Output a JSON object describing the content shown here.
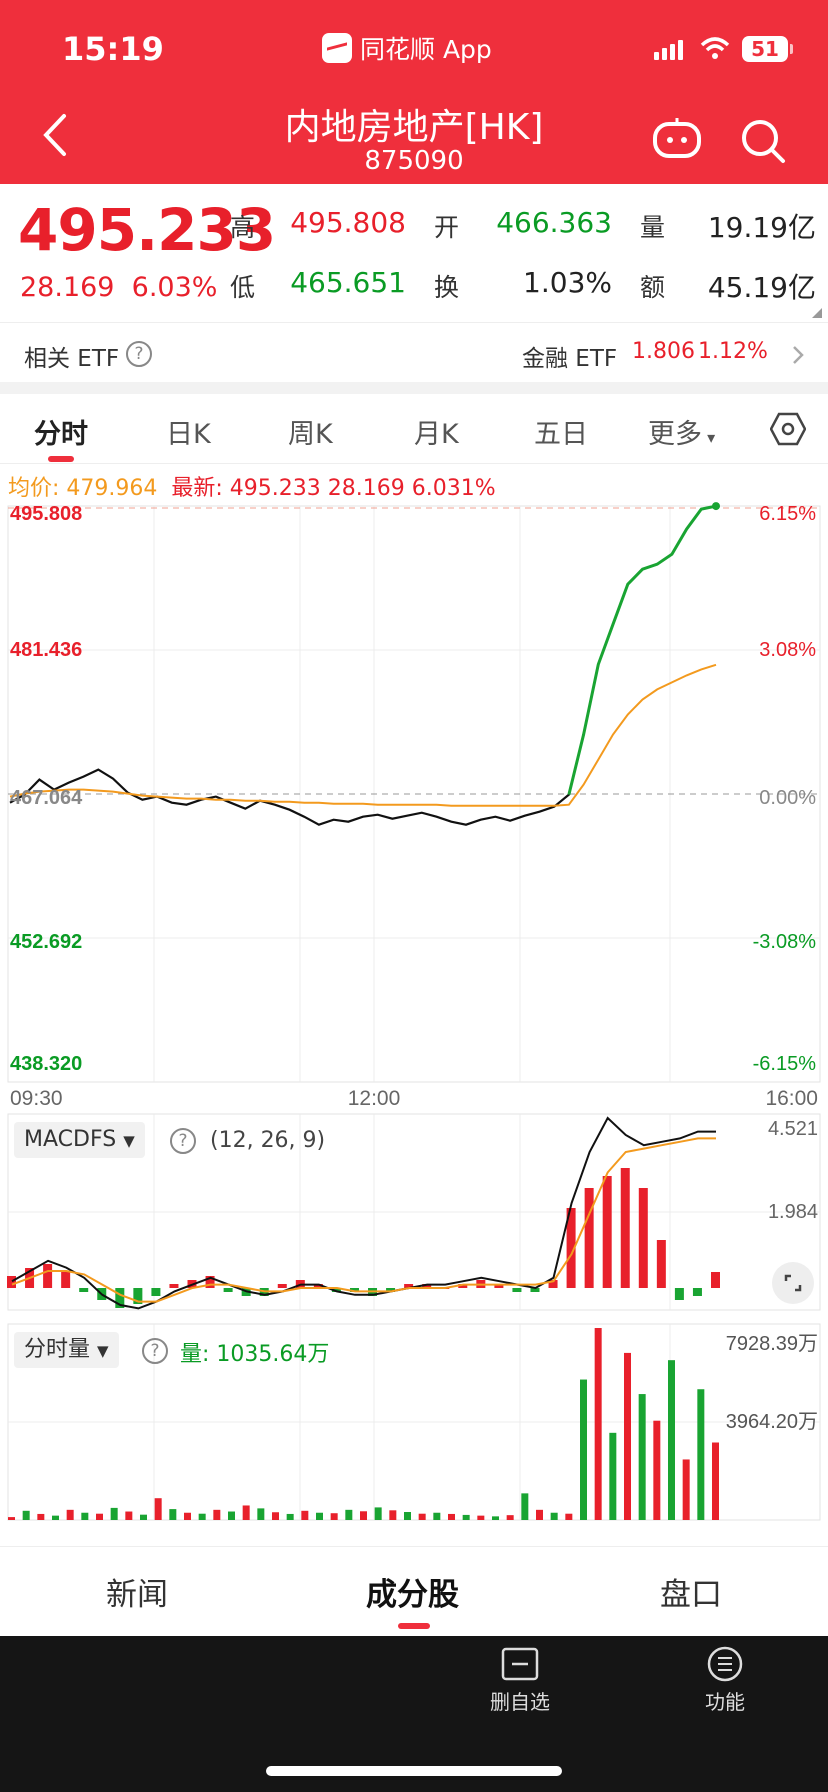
{
  "status": {
    "time": "15:19",
    "app_name": "同花顺 App",
    "battery": "51"
  },
  "header": {
    "title": "内地房地产[HK]",
    "code": "875090"
  },
  "quote": {
    "price": "495.233",
    "change": "28.169",
    "change_pct": "6.03%",
    "high_label": "高",
    "high": "495.808",
    "open_label": "开",
    "open": "466.363",
    "vol_label": "量",
    "volume": "19.19亿",
    "low_label": "低",
    "low": "465.651",
    "turnover_label": "换",
    "turnover": "1.03%",
    "amount_label": "额",
    "amount": "45.19亿"
  },
  "etf": {
    "label": "相关 ETF",
    "fund_name": "金融 ETF",
    "fund_price": "1.806",
    "fund_pct": "1.12%"
  },
  "tabs": [
    "分时",
    "日K",
    "周K",
    "月K",
    "五日",
    "更多"
  ],
  "avg": {
    "avg_label": "均价: 479.964",
    "latest_label": "最新: 495.233  28.169  6.031%"
  },
  "colors": {
    "red": "#e8202b",
    "green": "#0a9b24",
    "avg_line": "#f39a1e",
    "header": "#ef2f3c"
  },
  "chart_data": {
    "type": "line",
    "x_ticks": [
      "09:30",
      "12:00",
      "16:00"
    ],
    "y_left_ticks": [
      "495.808",
      "481.436",
      "467.064",
      "452.692",
      "438.320"
    ],
    "y_right_ticks": [
      "6.15%",
      "3.08%",
      "0.00%",
      "-3.08%",
      "-6.15%"
    ],
    "ylim": [
      438.32,
      495.808
    ],
    "prev_close": 467.064,
    "price_series": [
      466.2,
      467.0,
      468.5,
      467.5,
      468.2,
      468.8,
      469.5,
      468.6,
      467.2,
      466.5,
      466.8,
      466.2,
      466.0,
      466.5,
      466.8,
      466.2,
      465.6,
      466.4,
      466.0,
      465.5,
      464.8,
      464.0,
      464.5,
      464.3,
      464.8,
      465.0,
      464.6,
      464.9,
      465.2,
      464.8,
      464.3,
      464.0,
      464.5,
      464.8,
      464.4,
      464.9,
      465.3,
      465.8,
      467.0,
      473.0,
      480.0,
      484.0,
      488.0,
      489.5,
      490.0,
      491.0,
      493.5,
      495.5,
      495.8
    ],
    "avg_series": [
      466.8,
      467.1,
      467.3,
      467.4,
      467.5,
      467.5,
      467.4,
      467.3,
      467.1,
      466.9,
      466.8,
      466.7,
      466.6,
      466.6,
      466.5,
      466.5,
      466.4,
      466.4,
      466.3,
      466.3,
      466.2,
      466.2,
      466.1,
      466.1,
      466.1,
      466.0,
      466.0,
      466.0,
      466.0,
      466.0,
      465.9,
      465.9,
      465.9,
      465.9,
      465.9,
      465.9,
      465.9,
      465.9,
      466.0,
      468.0,
      470.5,
      473.0,
      475.0,
      476.5,
      477.5,
      478.2,
      478.9,
      479.5,
      479.96
    ],
    "macd": {
      "label": "MACDFS",
      "params": "(12, 26, 9)",
      "ticks": [
        "4.521",
        "1.984"
      ],
      "hist": [
        0.3,
        0.5,
        0.6,
        0.4,
        -0.1,
        -0.3,
        -0.5,
        -0.4,
        -0.2,
        0.1,
        0.2,
        0.3,
        -0.1,
        -0.2,
        -0.2,
        0.1,
        0.2,
        0.1,
        -0.1,
        -0.1,
        -0.2,
        -0.1,
        0.1,
        0.1,
        0.0,
        0.1,
        0.2,
        0.1,
        -0.1,
        -0.1,
        0.2,
        2.0,
        2.5,
        2.8,
        3.0,
        2.5,
        1.2,
        -0.3,
        -0.2,
        0.4
      ],
      "dif": [
        0.2,
        0.5,
        0.8,
        0.6,
        0.3,
        -0.2,
        -0.5,
        -0.6,
        -0.4,
        -0.1,
        0.1,
        0.3,
        0.1,
        -0.1,
        -0.2,
        -0.1,
        0.1,
        0.1,
        -0.1,
        -0.2,
        -0.2,
        -0.1,
        0.0,
        0.1,
        0.1,
        0.2,
        0.3,
        0.2,
        0.1,
        0.0,
        0.3,
        2.5,
        4.0,
        5.0,
        4.5,
        4.2,
        4.3,
        4.4,
        4.6,
        4.6
      ],
      "dea": [
        0.1,
        0.3,
        0.5,
        0.5,
        0.4,
        0.1,
        -0.2,
        -0.4,
        -0.4,
        -0.2,
        0.0,
        0.1,
        0.1,
        0.0,
        -0.1,
        -0.1,
        0.0,
        0.0,
        0.0,
        -0.1,
        -0.1,
        -0.1,
        0.0,
        0.0,
        0.0,
        0.1,
        0.1,
        0.1,
        0.1,
        0.1,
        0.2,
        1.0,
        2.2,
        3.4,
        4.0,
        4.1,
        4.2,
        4.3,
        4.4,
        4.4
      ]
    },
    "volume": {
      "label": "分时量",
      "current_label": "量:",
      "current": "1035.64万",
      "ticks": [
        "7928.39万",
        "3964.20万"
      ],
      "max": 7928.39,
      "bars": [
        120,
        380,
        250,
        180,
        420,
        300,
        260,
        500,
        350,
        220,
        900,
        450,
        300,
        260,
        420,
        350,
        600,
        480,
        320,
        250,
        380,
        300,
        280,
        420,
        360,
        520,
        400,
        330,
        260,
        300,
        250,
        210,
        180,
        150,
        200,
        1100,
        420,
        300,
        260,
        5800,
        7928,
        3600,
        6900,
        5200,
        4100,
        6600,
        2500,
        5400,
        3200
      ]
    }
  },
  "bottom_tabs": [
    "新闻",
    "成分股",
    "盘口"
  ],
  "footer": {
    "watch_btn": "删自选",
    "func_btn": "功能"
  }
}
